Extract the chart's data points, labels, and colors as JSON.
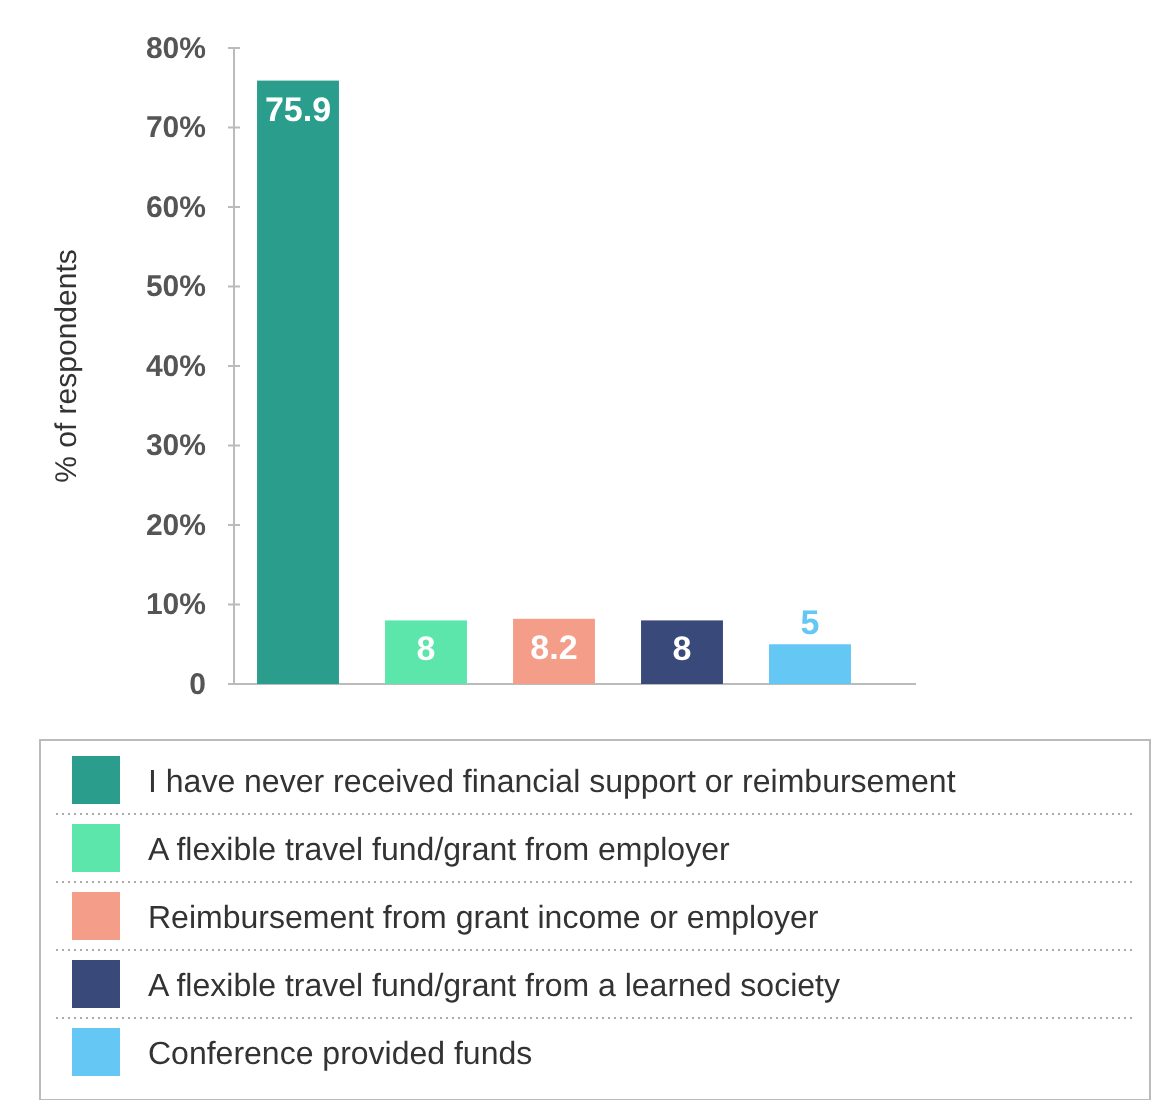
{
  "chart_data": {
    "type": "bar",
    "ylabel": "% of respondents",
    "categories": [
      null,
      null,
      null,
      null,
      null
    ],
    "series": [
      {
        "name": "I have never received financial support or reimbursement",
        "color": "#2a9d8c",
        "values": [
          75.9,
          null,
          null,
          null,
          null
        ]
      },
      {
        "name": "A flexible travel fund/grant from employer",
        "color": "#5ce6ab",
        "values": [
          null,
          8,
          null,
          null,
          null
        ]
      },
      {
        "name": "Reimbursement from grant income or employer",
        "color": "#f49e89",
        "values": [
          null,
          null,
          8.2,
          null,
          null
        ]
      },
      {
        "name": "A flexible travel fund/grant from a learned society",
        "color": "#394a7a",
        "values": [
          null,
          null,
          null,
          8,
          null
        ]
      },
      {
        "name": "Conference provided funds",
        "color": "#65c7f4",
        "values": [
          null,
          null,
          null,
          null,
          5
        ]
      }
    ],
    "ylim": [
      0,
      80
    ],
    "yticks": [
      0,
      {
        "value": 10,
        "label": "10%"
      },
      {
        "value": 20,
        "label": "20%"
      },
      {
        "value": 30,
        "label": "30%"
      },
      {
        "value": 40,
        "label": "40%"
      },
      {
        "value": 50,
        "label": "50%"
      },
      {
        "value": 60,
        "label": "60%"
      },
      {
        "value": 70,
        "label": "70%"
      },
      {
        "value": 80,
        "label": "80%"
      }
    ],
    "grid": false,
    "data_labels": true,
    "legend": "bottom"
  }
}
